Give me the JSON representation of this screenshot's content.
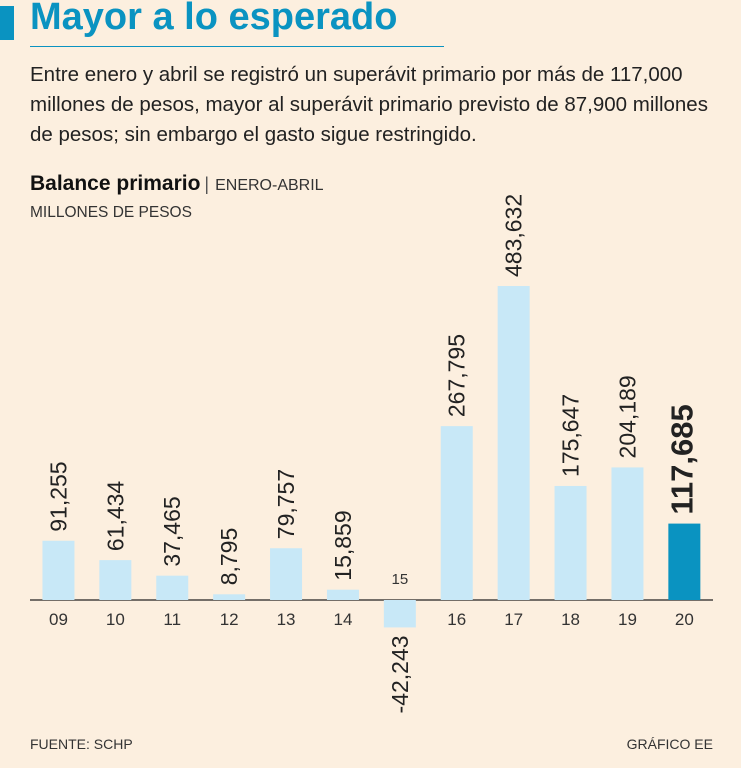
{
  "header": {
    "title": "Mayor a lo esperado",
    "intro": "Entre enero y abril se registró un superávit primario por más de 117,000 millones de pesos, mayor al superávit primario previsto de 87,900 millones de pesos; sin embargo el gasto sigue restringido."
  },
  "chart_data": {
    "type": "bar",
    "title": "Balance primario",
    "subtitle": "ENERO-ABRIL",
    "ylabel": "MILLONES DE PESOS",
    "categories": [
      "09",
      "10",
      "11",
      "12",
      "13",
      "14",
      "15",
      "16",
      "17",
      "18",
      "19",
      "20"
    ],
    "values": [
      91255,
      61434,
      37465,
      8795,
      79757,
      15859,
      -42243,
      267795,
      483632,
      175647,
      204189,
      117685
    ],
    "labels": [
      "91,255",
      "61,434",
      "37,465",
      "8,795",
      "79,757",
      "15,859",
      "-42,243",
      "267,795",
      "483,632",
      "175,647",
      "204,189",
      "117,685"
    ],
    "highlight_index": 11,
    "ylim": [
      -42243,
      483632
    ],
    "colors": {
      "bar": "#c8e8f7",
      "highlight": "#0a93c1",
      "axis": "#222222"
    }
  },
  "footer": {
    "source": "FUENTE: SCHP",
    "credit": "GRÁFICO EE"
  }
}
